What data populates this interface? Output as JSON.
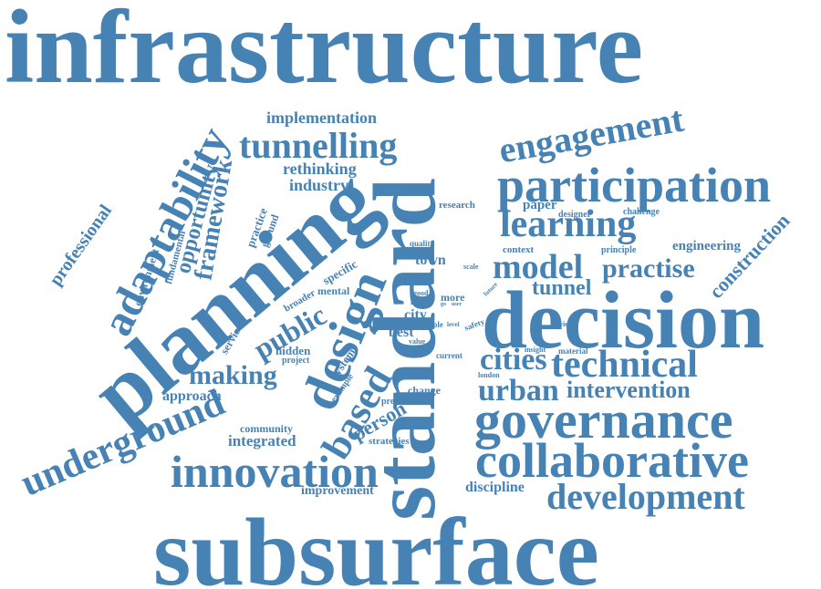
{
  "colors": {
    "word": "#4682b4",
    "background": "#ffffff"
  },
  "words": [
    "infrastructure",
    "subsurface",
    "standard",
    "planning",
    "decision",
    "participation",
    "governance",
    "collaborative",
    "innovation",
    "development",
    "underground",
    "design",
    "adaptability",
    "engagement",
    "tunnelling",
    "learning",
    "technical",
    "based",
    "model",
    "practise",
    "urban",
    "cities",
    "intervention",
    "framework",
    "construction",
    "public",
    "making",
    "opportunity",
    "professional",
    "tunnel",
    "implementation",
    "rethinking",
    "industry",
    "engineering",
    "approach",
    "integrated",
    "person",
    "improvement",
    "discipline",
    "best",
    "city",
    "more",
    "hidden",
    "change",
    "system",
    "example",
    "project",
    "present",
    "community",
    "strategies",
    "specific",
    "mental",
    "broader",
    "service",
    "fundamental",
    "environment",
    "practice",
    "ground",
    "research",
    "paper",
    "designer",
    "challenge",
    "context",
    "principle",
    "quality",
    "scale",
    "town",
    "good",
    "local",
    "role",
    "level",
    "safety",
    "future",
    "value",
    "thesis",
    "current",
    "insight",
    "material",
    "london",
    "review",
    "go",
    "user"
  ]
}
